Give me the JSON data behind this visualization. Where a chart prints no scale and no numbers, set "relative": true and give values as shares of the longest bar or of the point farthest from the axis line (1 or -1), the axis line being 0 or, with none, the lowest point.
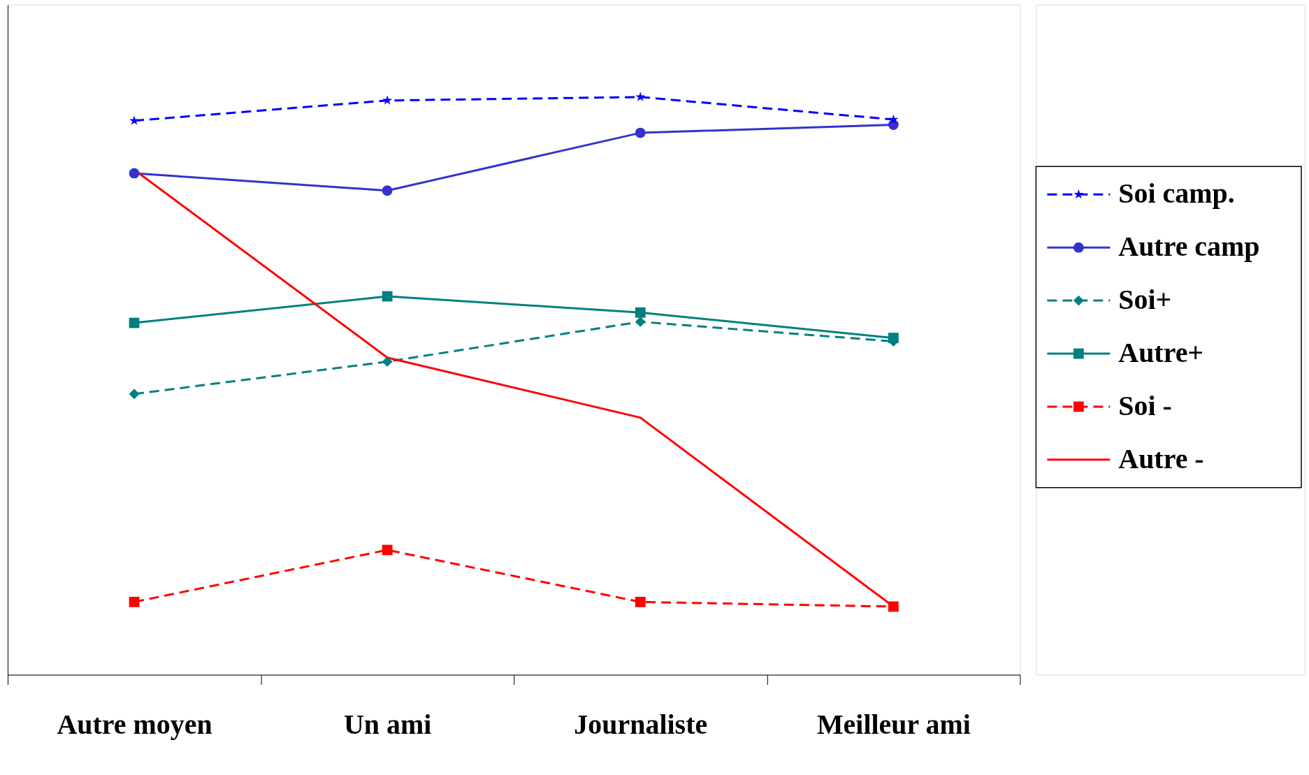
{
  "chart_data": {
    "type": "line",
    "relative": true,
    "categories": [
      "Autre moyen",
      "Un ami",
      "Journaliste",
      "Meilleur ami"
    ],
    "series": [
      {
        "name": "Soi camp.",
        "color": "#0000ff",
        "marker": "star",
        "line_style": "dashed",
        "values": [
          0.959,
          0.994,
          1.0,
          0.961
        ]
      },
      {
        "name": "Autre camp",
        "color": "#3333cc",
        "marker": "circle",
        "line_style": "solid",
        "values": [
          0.868,
          0.838,
          0.938,
          0.952
        ]
      },
      {
        "name": "Soi+",
        "color": "#008080",
        "marker": "diamond",
        "line_style": "dashed",
        "values": [
          0.486,
          0.542,
          0.611,
          0.577
        ]
      },
      {
        "name": "Autre+",
        "color": "#008080",
        "marker": "square",
        "line_style": "solid",
        "values": [
          0.609,
          0.655,
          0.627,
          0.583
        ]
      },
      {
        "name": "Soi -",
        "color": "#ff0000",
        "marker": "square",
        "line_style": "dashed",
        "values": [
          0.126,
          0.216,
          0.126,
          0.118
        ]
      },
      {
        "name": "Autre -",
        "color": "#ff0000",
        "marker": "none",
        "line_style": "solid",
        "values": [
          0.874,
          0.549,
          0.445,
          0.118
        ]
      }
    ],
    "legend": "right",
    "grid": false
  }
}
